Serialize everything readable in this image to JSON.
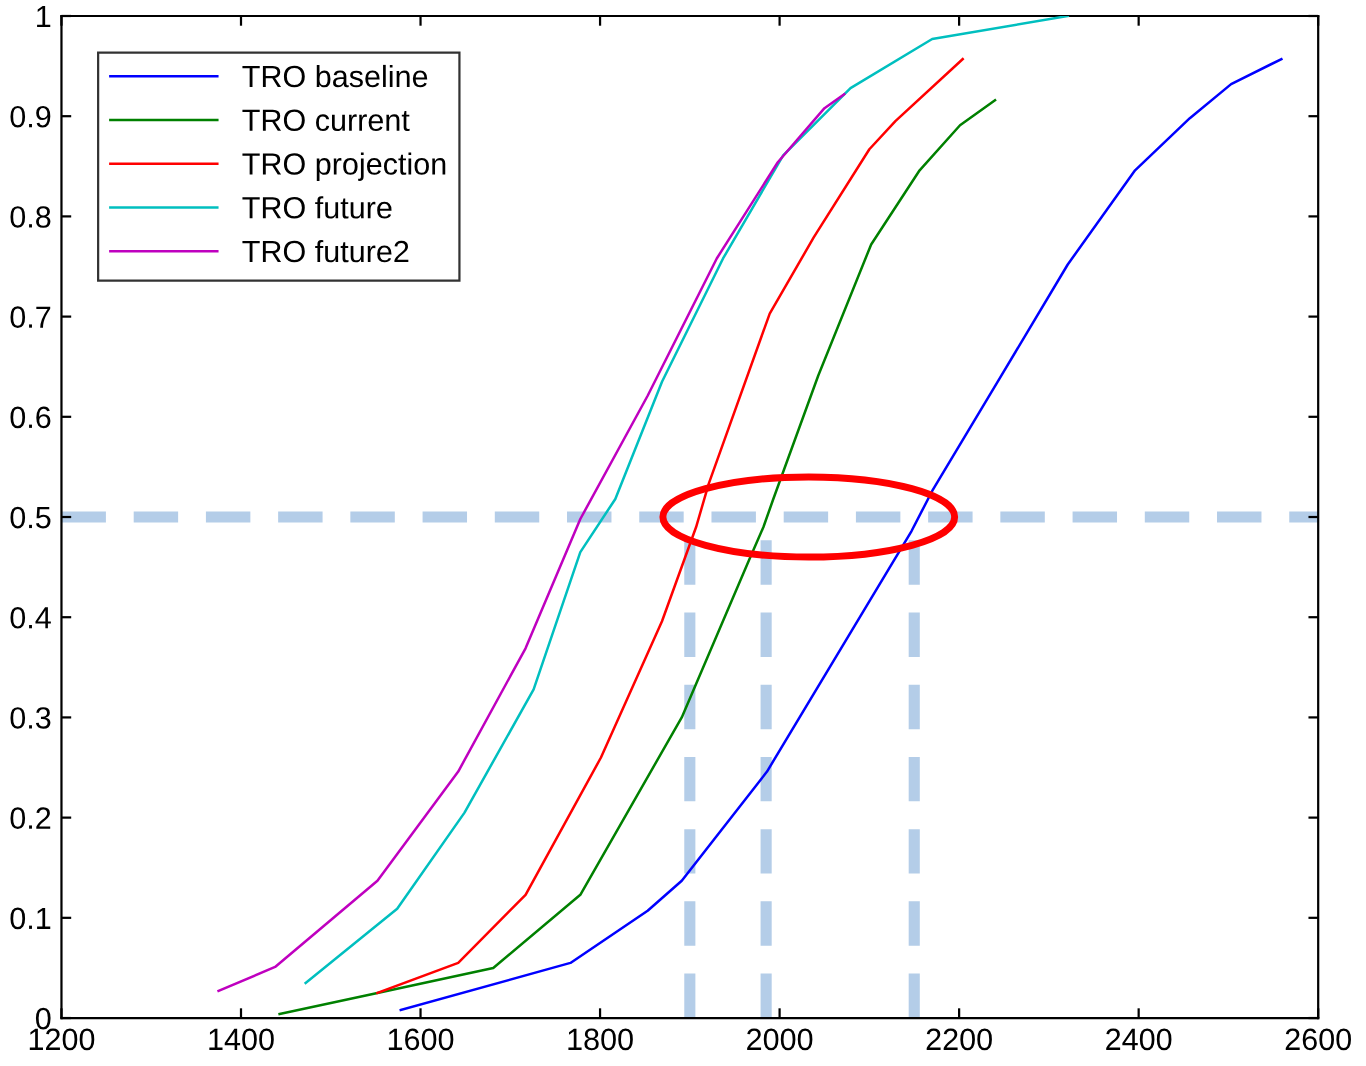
{
  "chart_data": {
    "type": "line",
    "xlim": [
      1200,
      2600
    ],
    "xticks": [
      1200,
      1400,
      1600,
      1800,
      2000,
      2200,
      2400,
      2600
    ],
    "ylim": [
      0,
      1
    ],
    "yticks": [
      0,
      0.1,
      0.2,
      0.3,
      0.4,
      0.5,
      0.6,
      0.7,
      0.8,
      0.9,
      1
    ],
    "grid": false,
    "legend": "top left",
    "marker": "none",
    "line_style": "solid",
    "series": [
      {
        "name": "TRO baseline",
        "color": "#0000ff",
        "x": [
          1578,
          1767,
          1853,
          1891,
          1986,
          2147,
          2170,
          2247,
          2321,
          2396,
          2457,
          2503,
          2559
        ],
        "values": [
          0.008,
          0.055,
          0.107,
          0.137,
          0.246,
          0.486,
          0.526,
          0.641,
          0.752,
          0.846,
          0.898,
          0.932,
          0.957
        ]
      },
      {
        "name": "TRO current",
        "color": "#008000",
        "x": [
          1443,
          1552,
          1681,
          1778,
          1891,
          1966,
          1982,
          1993,
          2043,
          2102,
          2156,
          2201,
          2240
        ],
        "values": [
          0.004,
          0.025,
          0.05,
          0.123,
          0.3,
          0.457,
          0.49,
          0.518,
          0.641,
          0.772,
          0.846,
          0.891,
          0.916
        ]
      },
      {
        "name": "TRO projection",
        "color": "#ff0000",
        "x": [
          1552,
          1642,
          1717,
          1801,
          1869,
          1907,
          1921,
          1989,
          2038,
          2100,
          2129,
          2204
        ],
        "values": [
          0.025,
          0.055,
          0.123,
          0.26,
          0.396,
          0.49,
          0.533,
          0.703,
          0.779,
          0.867,
          0.895,
          0.957
        ]
      },
      {
        "name": "TRO future",
        "color": "#00bfbf",
        "x": [
          1472,
          1574,
          1649,
          1726,
          1778,
          1817,
          1869,
          1937,
          2004,
          2079,
          2170,
          2321
        ],
        "values": [
          0.035,
          0.109,
          0.205,
          0.328,
          0.465,
          0.518,
          0.635,
          0.758,
          0.861,
          0.928,
          0.977,
          1.0
        ]
      },
      {
        "name": "TRO future2",
        "color": "#bf00bf",
        "x": [
          1375,
          1438,
          1552,
          1642,
          1717,
          1778,
          1853,
          1930,
          1998,
          2050,
          2072
        ],
        "values": [
          0.027,
          0.051,
          0.137,
          0.246,
          0.369,
          0.498,
          0.621,
          0.758,
          0.854,
          0.908,
          0.922
        ]
      }
    ],
    "ref_lines": [
      {
        "axis": "y",
        "value": 0.5,
        "color": "#b4cde8",
        "line_style": "dashed"
      },
      {
        "axis": "x",
        "value": 1900,
        "color": "#b4cde8",
        "line_style": "dashed"
      },
      {
        "axis": "x",
        "value": 1985,
        "color": "#b4cde8",
        "line_style": "dashed"
      },
      {
        "axis": "x",
        "value": 2150,
        "color": "#b4cde8",
        "line_style": "dashed"
      }
    ]
  }
}
